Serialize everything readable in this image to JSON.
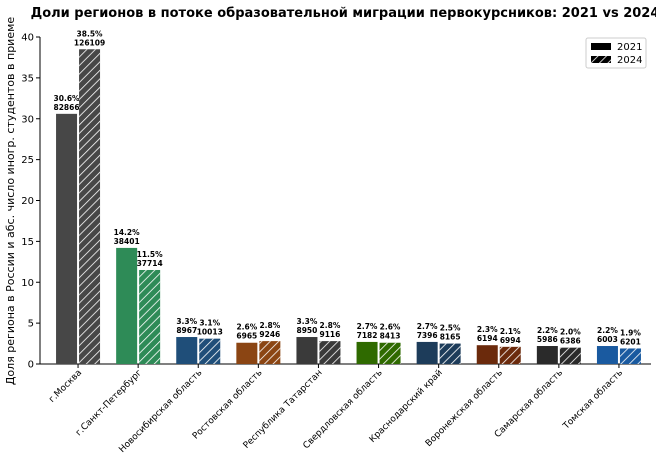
{
  "chart_data": {
    "type": "bar",
    "title": "Доли регионов в потоке образовательной миграции первокурсников: 2021 vs 2024",
    "xlabel": "",
    "ylabel": "Доля региона в России и абс. число иногр. студентов в приеме",
    "ylim": [
      0,
      40
    ],
    "yticks": [
      0,
      5,
      10,
      15,
      20,
      25,
      30,
      35,
      40
    ],
    "grid": false,
    "legend_position": "top-right",
    "categories": [
      "г.Москва",
      "г.Санкт-Петербург",
      "Новосибирская область",
      "Ростовская область",
      "Республика Татарстан",
      "Свердловская область",
      "Краснодарский край",
      "Воронежская область",
      "Самарская область",
      "Томская область"
    ],
    "category_colors": [
      "#474747",
      "#2e8b57",
      "#1f4e79",
      "#8b4513",
      "#3a3a3a",
      "#2f6a00",
      "#1d3c5a",
      "#6b2a0c",
      "#2a2a2a",
      "#1a5aa0"
    ],
    "series": [
      {
        "name": "2021",
        "pattern": "solid",
        "values": [
          30.6,
          14.2,
          3.3,
          2.6,
          3.3,
          2.7,
          2.7,
          2.3,
          2.2,
          2.2
        ],
        "pct_labels": [
          "30.6%",
          "14.2%",
          "3.3%",
          "2.6%",
          "3.3%",
          "2.7%",
          "2.7%",
          "2.3%",
          "2.2%",
          "2.2%"
        ],
        "counts": [
          "82866",
          "38401",
          "8967",
          "6965",
          "8950",
          "7182",
          "7396",
          "6194",
          "5986",
          "6003"
        ]
      },
      {
        "name": "2024",
        "pattern": "hatched",
        "values": [
          38.5,
          11.5,
          3.1,
          2.8,
          2.8,
          2.6,
          2.5,
          2.1,
          2.0,
          1.9
        ],
        "pct_labels": [
          "38.5%",
          "11.5%",
          "3.1%",
          "2.8%",
          "2.8%",
          "2.6%",
          "2.5%",
          "2.1%",
          "2.0%",
          "1.9%"
        ],
        "counts": [
          "126109",
          "37714",
          "10013",
          "9246",
          "9116",
          "8413",
          "8165",
          "6994",
          "6386",
          "6201"
        ]
      }
    ]
  }
}
